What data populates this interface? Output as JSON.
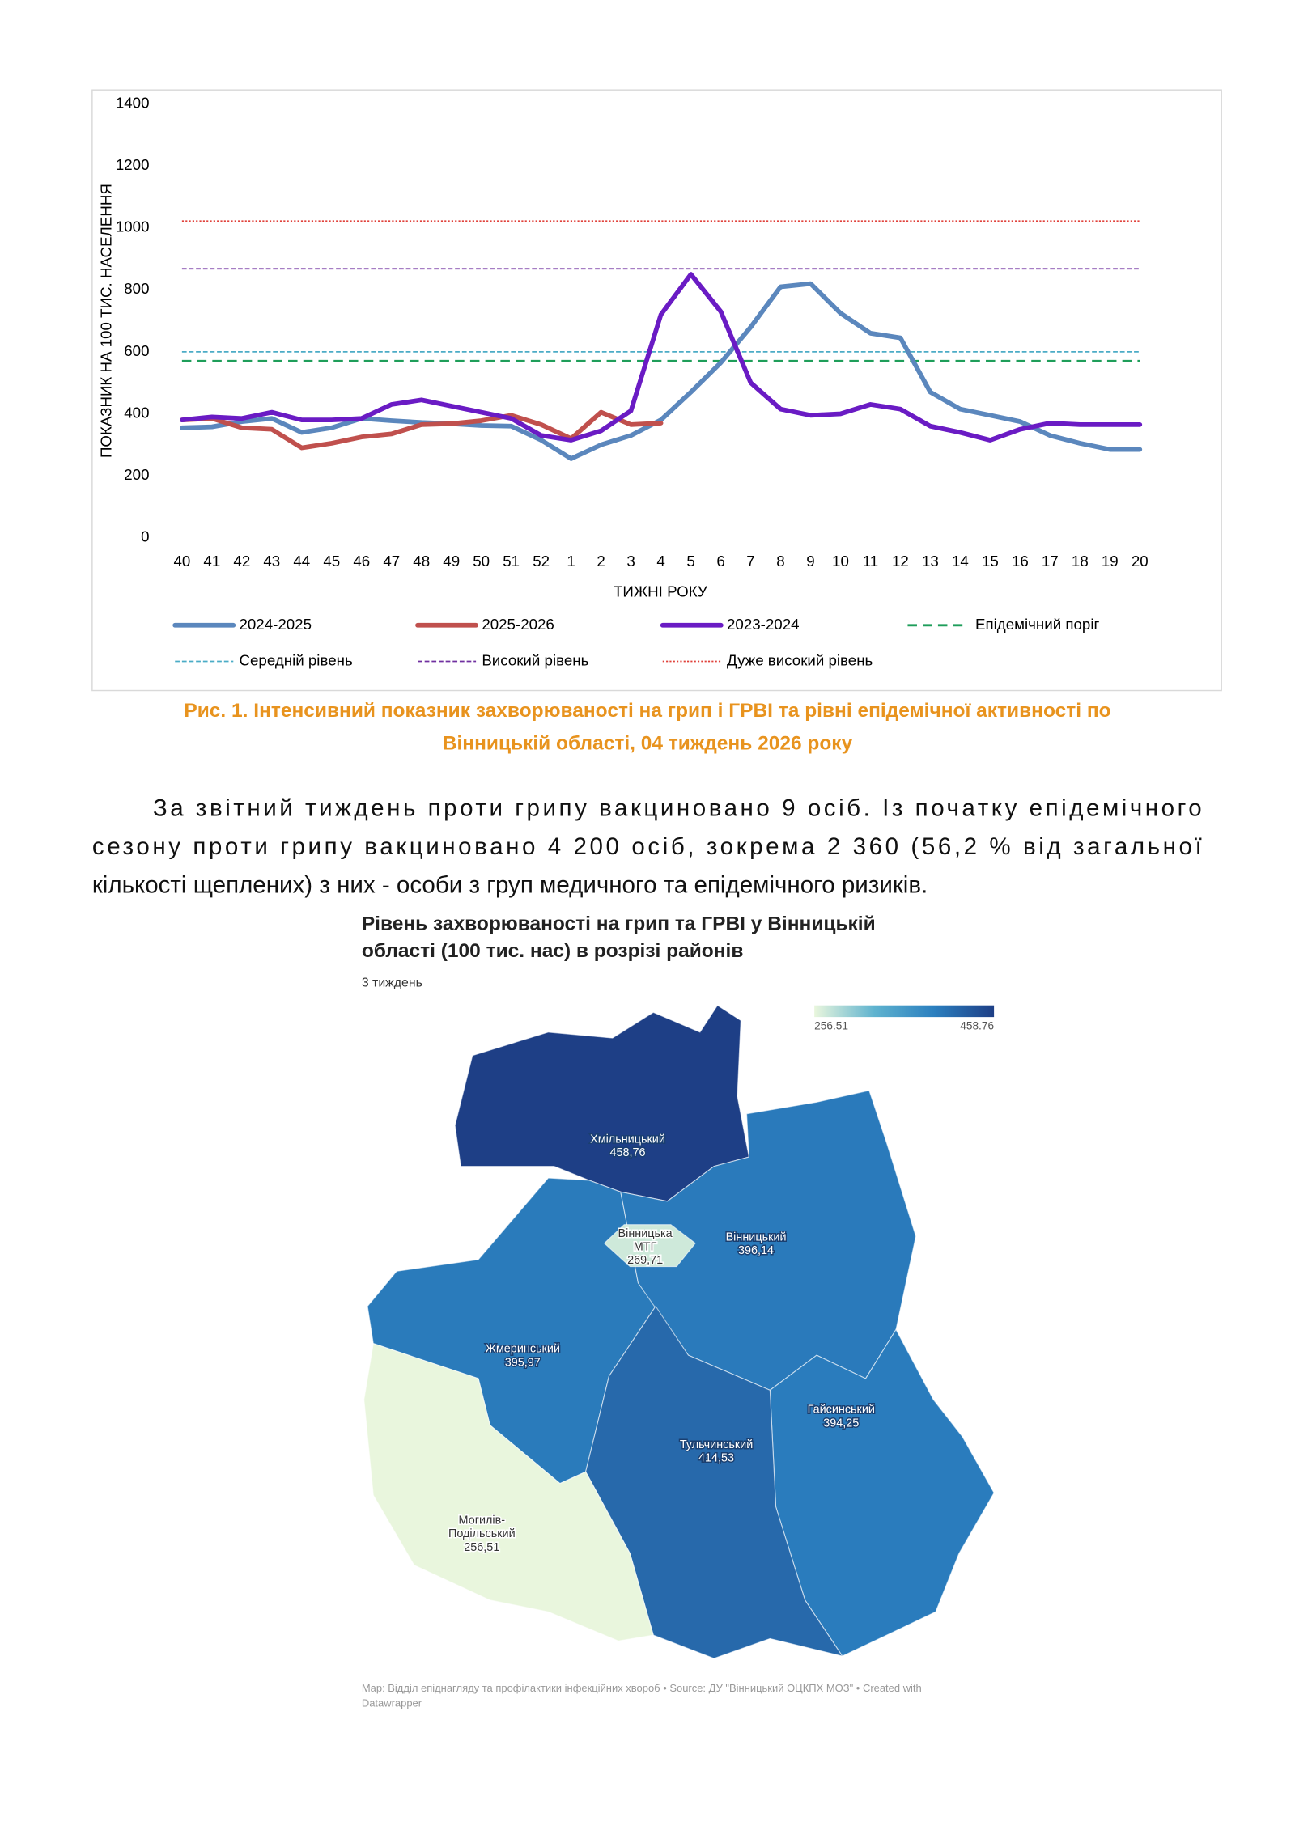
{
  "chart_data": [
    {
      "type": "line",
      "y_axis_label": "ПОКАЗНИК НА 100 ТИС. НАСЕЛЕННЯ",
      "x_axis_label": "ТИЖНІ РОКУ",
      "categories": [
        "40",
        "41",
        "42",
        "43",
        "44",
        "45",
        "46",
        "47",
        "48",
        "49",
        "50",
        "51",
        "52",
        "1",
        "2",
        "3",
        "4",
        "5",
        "6",
        "7",
        "8",
        "9",
        "10",
        "11",
        "12",
        "13",
        "14",
        "15",
        "16",
        "17",
        "18",
        "19",
        "20"
      ],
      "ylim": [
        0,
        1400
      ],
      "yticks": [
        0,
        200,
        400,
        600,
        800,
        1000,
        1200,
        1400
      ],
      "series": [
        {
          "name": "2024-2025",
          "color": "#5b87bd",
          "values": [
            355,
            358,
            375,
            385,
            340,
            355,
            385,
            378,
            372,
            368,
            362,
            360,
            315,
            255,
            300,
            330,
            380,
            470,
            565,
            680,
            810,
            820,
            725,
            660,
            645,
            470,
            415,
            395,
            375,
            330,
            305,
            285,
            285
          ]
        },
        {
          "name": "2025-2026",
          "color": "#c0504d",
          "values": [
            380,
            385,
            355,
            350,
            290,
            305,
            325,
            335,
            365,
            368,
            378,
            395,
            365,
            320,
            405,
            365,
            370,
            null,
            null,
            null,
            null,
            null,
            null,
            null,
            null,
            null,
            null,
            null,
            null,
            null,
            null,
            null,
            null
          ]
        },
        {
          "name": "2023-2024",
          "color": "#6a1bc4",
          "values": [
            380,
            390,
            385,
            405,
            380,
            380,
            385,
            430,
            445,
            425,
            405,
            385,
            330,
            315,
            345,
            410,
            720,
            850,
            730,
            500,
            415,
            395,
            400,
            430,
            415,
            360,
            340,
            315,
            350,
            370,
            365,
            365,
            365
          ]
        }
      ],
      "reference_lines": [
        {
          "name": "Епідемічний поріг",
          "color": "#1f9e5a",
          "style": "dashed",
          "value": 570
        },
        {
          "name": "Середній рівень",
          "color": "#4bacc6",
          "style": "fine-dashed",
          "value": 600
        },
        {
          "name": "Високий рівень",
          "color": "#7030a0",
          "style": "fine-dashed",
          "value": 868
        },
        {
          "name": "Дуже високий рівень",
          "color": "#e0403a",
          "style": "dotted",
          "value": 1022
        }
      ]
    },
    {
      "type": "choropleth",
      "title": [
        "Рівень захворюваності на грип та ГРВІ у Вінницькій",
        "області (100 тис. нас) в розрізі районів"
      ],
      "subtitle": "3 тиждень",
      "scale_min": 256.51,
      "scale_max": 458.76,
      "color_scale": [
        "#e9f6dd",
        "#5fb3cf",
        "#2b7fbf",
        "#1e3f86"
      ],
      "regions": [
        {
          "name": [
            "Хмільницький"
          ],
          "value": 458.76,
          "value_label": "458,76"
        },
        {
          "name": [
            "Жмеринський"
          ],
          "value": 395.97,
          "value_label": "395,97"
        },
        {
          "name": [
            "Вінницький"
          ],
          "value": 396.14,
          "value_label": "396,14"
        },
        {
          "name": [
            "Гайсинський"
          ],
          "value": 394.25,
          "value_label": "394,25"
        },
        {
          "name": [
            "Тульчинський"
          ],
          "value": 414.53,
          "value_label": "414,53"
        },
        {
          "name": [
            "Могилів-",
            "Подільський"
          ],
          "value": 256.51,
          "value_label": "256,51"
        },
        {
          "name": [
            "Вінницька",
            "МТГ"
          ],
          "value": 269.71,
          "value_label": "269,71"
        }
      ],
      "source": [
        "Map: Відділ епіднагляду та профілактики інфекційних хвороб • Source: ДУ \"Вінницький ОЦКПХ МОЗ\" • Created with",
        "Datawrapper"
      ]
    }
  ],
  "caption": [
    "Рис. 1. Інтенсивний показник захворюваності на грип і ГРВІ та рівні епідемічної активності  по",
    "Вінницькій області, 04 тиждень 2026 року"
  ],
  "paragraph": [
    "За звітний тиждень проти грипу вакциновано 9 осіб. Із початку епідемічного",
    "сезону проти грипу вакциновано 4 200 осіб, зокрема 2 360 (56,2 % від загальної",
    "кількості щеплених) з них - особи з груп медичного та епідемічного ризиків."
  ]
}
